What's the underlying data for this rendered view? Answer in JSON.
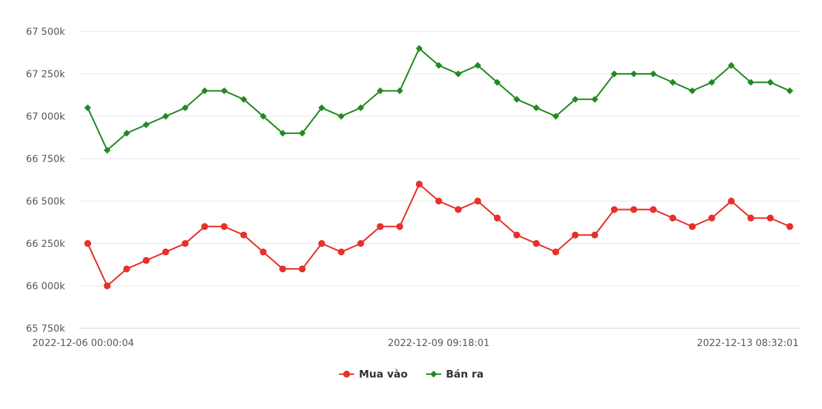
{
  "chart_data": {
    "type": "line",
    "title": "",
    "xlabel": "",
    "ylabel": "",
    "ylim": [
      65750,
      67500
    ],
    "y_ticks": [
      {
        "value": 65750,
        "label": "65 750k"
      },
      {
        "value": 66000,
        "label": "66 000k"
      },
      {
        "value": 66250,
        "label": "66 250k"
      },
      {
        "value": 66500,
        "label": "66 500k"
      },
      {
        "value": 66750,
        "label": "66 750k"
      },
      {
        "value": 67000,
        "label": "67 000k"
      },
      {
        "value": 67250,
        "label": "67 250k"
      },
      {
        "value": 67500,
        "label": "67 500k"
      }
    ],
    "x_tick_labels": [
      {
        "index": 0,
        "label": "2022-12-06 00:00:04"
      },
      {
        "index": 18,
        "label": "2022-12-09 09:18:01"
      },
      {
        "index": 36,
        "label": "2022-12-13 08:32:01"
      }
    ],
    "grid": true,
    "legend_position": "bottom-center",
    "series": [
      {
        "name": "Mua vào",
        "color": "#e8302a",
        "marker": "circle",
        "values": [
          66250,
          66000,
          66100,
          66150,
          66200,
          66250,
          66350,
          66350,
          66300,
          66200,
          66100,
          66100,
          66250,
          66200,
          66250,
          66350,
          66350,
          66600,
          66500,
          66450,
          66500,
          66400,
          66300,
          66250,
          66200,
          66300,
          66300,
          66450,
          66450,
          66450,
          66400,
          66350,
          66400,
          66500,
          66400,
          66400,
          66350
        ]
      },
      {
        "name": "Bán ra",
        "color": "#218a21",
        "marker": "diamond",
        "values": [
          67050,
          66800,
          66900,
          66950,
          67000,
          67050,
          67150,
          67150,
          67100,
          67000,
          66900,
          66900,
          67050,
          67000,
          67050,
          67150,
          67150,
          67400,
          67300,
          67250,
          67300,
          67200,
          67100,
          67050,
          67000,
          67100,
          67100,
          67250,
          67250,
          67250,
          67200,
          67150,
          67200,
          67300,
          67200,
          67200,
          67150
        ]
      }
    ]
  }
}
